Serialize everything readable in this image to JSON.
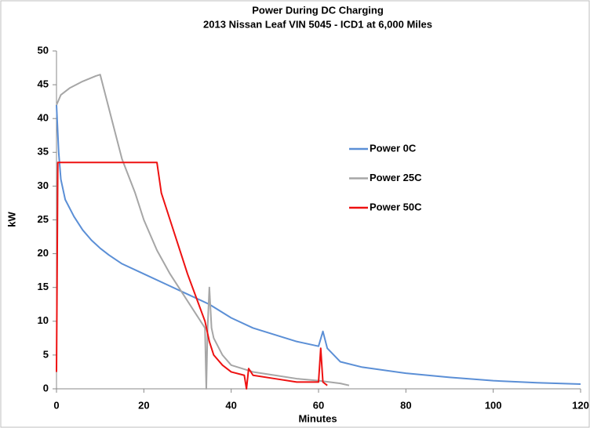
{
  "chart_data": {
    "type": "line",
    "title": "Power During DC Charging",
    "subtitle": "2013 Nissan Leaf VIN 5045 - ICD1 at 6,000 Miles",
    "x_label": "Minutes",
    "y_label": "kW",
    "xlim": [
      0,
      120
    ],
    "xticks": [
      0,
      20,
      40,
      60,
      80,
      100,
      120
    ],
    "ylim": [
      0,
      50
    ],
    "yticks": [
      0,
      5,
      10,
      15,
      20,
      25,
      30,
      35,
      40,
      45,
      50
    ],
    "grid": false,
    "legend": "right",
    "series": [
      {
        "name": "Power 0C",
        "color": "#5b8fd6",
        "x": [
          0,
          0.5,
          1,
          2,
          4,
          6,
          8,
          10,
          12,
          15,
          20,
          25,
          30,
          35,
          40,
          45,
          50,
          55,
          60,
          61,
          62,
          65,
          70,
          80,
          90,
          100,
          110,
          120
        ],
        "values": [
          42,
          35,
          31,
          28,
          25.5,
          23.5,
          22,
          20.8,
          19.8,
          18.5,
          17,
          15.5,
          14,
          12.5,
          10.5,
          9,
          8,
          7,
          6.3,
          8.5,
          6,
          4,
          3.2,
          2.3,
          1.7,
          1.2,
          0.9,
          0.7
        ]
      },
      {
        "name": "Power 25C",
        "color": "#a6a6a6",
        "x": [
          0,
          1,
          3,
          6,
          9,
          10,
          11,
          13,
          15,
          18,
          20,
          23,
          26,
          29,
          32,
          34,
          34.3,
          34.6,
          35,
          35.5,
          36,
          38,
          40,
          45,
          50,
          55,
          60,
          65,
          67
        ],
        "values": [
          42,
          43.5,
          44.5,
          45.5,
          46.3,
          46.5,
          44,
          39,
          34,
          29,
          25,
          20.5,
          17,
          14,
          11,
          9,
          0,
          9,
          15,
          9,
          7.5,
          5,
          3.5,
          2.5,
          2,
          1.5,
          1.2,
          0.8,
          0.5
        ]
      },
      {
        "name": "Power 50C",
        "color": "#ee1111",
        "x": [
          0,
          0.3,
          5,
          10,
          15,
          20,
          23,
          24,
          26,
          28,
          30,
          32,
          34,
          35,
          36,
          38,
          40,
          43,
          43.5,
          44,
          45,
          50,
          55,
          60,
          60.5,
          61,
          62
        ],
        "values": [
          2.5,
          33.5,
          33.5,
          33.5,
          33.5,
          33.5,
          33.5,
          29,
          25,
          21,
          17,
          13.5,
          10,
          7,
          5,
          3.5,
          2.5,
          2,
          0,
          3,
          2,
          1.5,
          1,
          1,
          6,
          1,
          0.5
        ]
      }
    ]
  }
}
